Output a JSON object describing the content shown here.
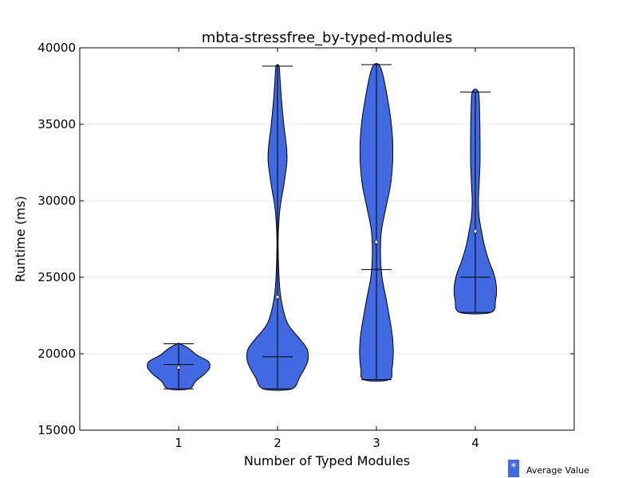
{
  "chart_data": {
    "type": "violin",
    "title": "mbta-stressfree_by-typed-modules",
    "xlabel": "Number of Typed Modules",
    "ylabel": "Runtime (ms)",
    "ylim": [
      15000,
      40000
    ],
    "yticks": [
      "15000",
      "20000",
      "25000",
      "30000",
      "35000",
      "40000"
    ],
    "categories": [
      "1",
      "2",
      "3",
      "4"
    ],
    "grid": "horizontal",
    "violin_color": "#4169e1",
    "legend": {
      "label": "Average Value",
      "marker": "*",
      "placement": "bottom-right"
    },
    "series": [
      {
        "category": "1",
        "min": 17700,
        "max": 20650,
        "median": 19300,
        "mean": 19100,
        "density": [
          [
            17700,
            0.33
          ],
          [
            18200,
            0.55
          ],
          [
            18700,
            0.85
          ],
          [
            19100,
            1.0
          ],
          [
            19500,
            0.95
          ],
          [
            19900,
            0.6
          ],
          [
            20300,
            0.35
          ],
          [
            20650,
            0.05
          ]
        ]
      },
      {
        "category": "2",
        "min": 17700,
        "max": 38800,
        "median": 19800,
        "mean": 23700,
        "density": [
          [
            17700,
            0.45
          ],
          [
            18500,
            0.72
          ],
          [
            19500,
            0.97
          ],
          [
            20300,
            0.95
          ],
          [
            21000,
            0.7
          ],
          [
            22000,
            0.32
          ],
          [
            23500,
            0.12
          ],
          [
            25000,
            0.05
          ],
          [
            27500,
            0.02
          ],
          [
            29500,
            0.08
          ],
          [
            31000,
            0.2
          ],
          [
            32500,
            0.3
          ],
          [
            33500,
            0.29
          ],
          [
            35000,
            0.2
          ],
          [
            36500,
            0.13
          ],
          [
            38000,
            0.08
          ],
          [
            38800,
            0.05
          ]
        ]
      },
      {
        "category": "3",
        "min": 18300,
        "max": 38900,
        "median": 25500,
        "mean": 27300,
        "density": [
          [
            18300,
            0.4
          ],
          [
            19000,
            0.5
          ],
          [
            20000,
            0.54
          ],
          [
            21000,
            0.52
          ],
          [
            22000,
            0.45
          ],
          [
            23500,
            0.32
          ],
          [
            25000,
            0.18
          ],
          [
            26500,
            0.13
          ],
          [
            28000,
            0.16
          ],
          [
            29500,
            0.3
          ],
          [
            31000,
            0.45
          ],
          [
            32500,
            0.52
          ],
          [
            34000,
            0.52
          ],
          [
            35500,
            0.45
          ],
          [
            37000,
            0.33
          ],
          [
            38300,
            0.2
          ],
          [
            38900,
            0.08
          ]
        ]
      },
      {
        "category": "4",
        "min": 22700,
        "max": 37100,
        "median": 25000,
        "mean": 28000,
        "density": [
          [
            22700,
            0.5
          ],
          [
            23500,
            0.65
          ],
          [
            24300,
            0.68
          ],
          [
            25200,
            0.6
          ],
          [
            26000,
            0.45
          ],
          [
            27000,
            0.3
          ],
          [
            28000,
            0.2
          ],
          [
            29000,
            0.12
          ],
          [
            30000,
            0.1
          ],
          [
            31000,
            0.12
          ],
          [
            32500,
            0.15
          ],
          [
            34000,
            0.15
          ],
          [
            35500,
            0.14
          ],
          [
            37100,
            0.1
          ]
        ]
      }
    ]
  }
}
